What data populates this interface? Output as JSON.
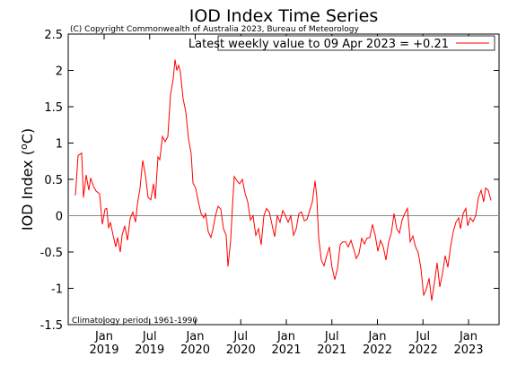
{
  "chart_data": {
    "type": "line",
    "title": "IOD Index Time Series",
    "subtitle": "(C) Copyright Commonwealth of Australia 2023, Bureau of Meteorology",
    "y_label": {
      "text": "IOD Index (",
      "sup": "o",
      "unit": "C)"
    },
    "annotation": "Climatology period: 1961-1990",
    "legend": "upper right",
    "zero_line": "#888888",
    "x": [
      2018.685,
      2018.714,
      2018.754,
      2018.773,
      2018.803,
      2018.833,
      2018.852,
      2018.882,
      2018.911,
      2018.951,
      2018.98,
      2019.01,
      2019.03,
      2019.049,
      2019.069,
      2019.099,
      2019.128,
      2019.148,
      2019.177,
      2019.197,
      2019.227,
      2019.256,
      2019.286,
      2019.315,
      2019.345,
      2019.365,
      2019.394,
      2019.424,
      2019.453,
      2019.483,
      2019.512,
      2019.542,
      2019.562,
      2019.591,
      2019.611,
      2019.64,
      2019.67,
      2019.7,
      2019.729,
      2019.759,
      2019.778,
      2019.798,
      2019.818,
      2019.837,
      2019.867,
      2019.897,
      2019.926,
      2019.956,
      2019.975,
      2020.005,
      2020.034,
      2020.064,
      2020.094,
      2020.113,
      2020.143,
      2020.172,
      2020.192,
      2020.222,
      2020.251,
      2020.281,
      2020.31,
      2020.34,
      2020.36,
      2020.389,
      2020.409,
      2020.429,
      2020.458,
      2020.488,
      2020.517,
      2020.547,
      2020.576,
      2020.606,
      2020.635,
      2020.665,
      2020.695,
      2020.724,
      2020.754,
      2020.783,
      2020.813,
      2020.842,
      2020.872,
      2020.901,
      2020.931,
      2020.961,
      2020.99,
      2021.02,
      2021.049,
      2021.079,
      2021.108,
      2021.138,
      2021.167,
      2021.197,
      2021.227,
      2021.256,
      2021.286,
      2021.315,
      2021.335,
      2021.355,
      2021.384,
      2021.414,
      2021.443,
      2021.473,
      2021.502,
      2021.532,
      2021.562,
      2021.591,
      2021.621,
      2021.65,
      2021.68,
      2021.709,
      2021.739,
      2021.768,
      2021.798,
      2021.828,
      2021.857,
      2021.887,
      2021.916,
      2021.946,
      2021.975,
      2022.005,
      2022.034,
      2022.064,
      2022.094,
      2022.123,
      2022.153,
      2022.182,
      2022.212,
      2022.241,
      2022.271,
      2022.3,
      2022.33,
      2022.36,
      2022.389,
      2022.419,
      2022.448,
      2022.478,
      2022.507,
      2022.537,
      2022.567,
      2022.596,
      2022.626,
      2022.655,
      2022.685,
      2022.714,
      2022.744,
      2022.773,
      2022.803,
      2022.833,
      2022.862,
      2022.892,
      2022.911,
      2022.941,
      2022.97,
      2022.99,
      2023.02,
      2023.049,
      2023.079,
      2023.108,
      2023.138,
      2023.167,
      2023.187,
      2023.217,
      2023.246
    ],
    "series": [
      {
        "name": "Latest weekly value to 09 Apr 2023 = +0.21",
        "color": "#ff0000",
        "values": [
          0.28,
          0.83,
          0.86,
          0.25,
          0.56,
          0.35,
          0.52,
          0.41,
          0.34,
          0.3,
          -0.12,
          0.09,
          0.1,
          -0.17,
          -0.09,
          -0.27,
          -0.43,
          -0.3,
          -0.5,
          -0.27,
          -0.14,
          -0.34,
          -0.04,
          0.05,
          -0.09,
          0.15,
          0.38,
          0.76,
          0.56,
          0.25,
          0.22,
          0.44,
          0.23,
          0.81,
          0.77,
          1.09,
          1.02,
          1.09,
          1.67,
          1.88,
          2.15,
          2.0,
          2.07,
          1.98,
          1.61,
          1.43,
          1.06,
          0.85,
          0.45,
          0.38,
          0.2,
          0.03,
          -0.03,
          0.03,
          -0.22,
          -0.3,
          -0.2,
          0.0,
          0.13,
          0.09,
          -0.18,
          -0.27,
          -0.7,
          -0.34,
          0.13,
          0.54,
          0.48,
          0.44,
          0.5,
          0.31,
          0.19,
          -0.06,
          0.0,
          -0.27,
          -0.18,
          -0.4,
          0.0,
          0.1,
          0.05,
          -0.12,
          -0.29,
          0.0,
          -0.09,
          0.07,
          0.0,
          -0.09,
          0.0,
          -0.27,
          -0.18,
          0.03,
          0.05,
          -0.07,
          -0.05,
          0.07,
          0.19,
          0.48,
          0.25,
          -0.3,
          -0.61,
          -0.69,
          -0.55,
          -0.43,
          -0.71,
          -0.88,
          -0.73,
          -0.4,
          -0.36,
          -0.36,
          -0.43,
          -0.34,
          -0.46,
          -0.59,
          -0.52,
          -0.31,
          -0.39,
          -0.31,
          -0.3,
          -0.12,
          -0.27,
          -0.49,
          -0.34,
          -0.43,
          -0.61,
          -0.36,
          -0.24,
          0.03,
          -0.18,
          -0.24,
          -0.06,
          0.03,
          0.1,
          -0.36,
          -0.28,
          -0.43,
          -0.51,
          -0.73,
          -1.1,
          -1.01,
          -0.86,
          -1.17,
          -0.92,
          -0.65,
          -0.98,
          -0.8,
          -0.55,
          -0.71,
          -0.43,
          -0.22,
          -0.09,
          -0.03,
          -0.18,
          0.03,
          0.1,
          -0.14,
          -0.03,
          -0.08,
          0.0,
          0.25,
          0.35,
          0.19,
          0.38,
          0.35,
          0.21
        ]
      }
    ],
    "xlim": [
      2018.606,
      2023.335
    ],
    "xticks": [
      {
        "value": 2019.0,
        "label": "Jan",
        "year": "2019"
      },
      {
        "value": 2019.5,
        "label": "Jul",
        "year": "2019"
      },
      {
        "value": 2020.0,
        "label": "Jan",
        "year": "2020"
      },
      {
        "value": 2020.5,
        "label": "Jul",
        "year": "2020"
      },
      {
        "value": 2021.0,
        "label": "Jan",
        "year": "2021"
      },
      {
        "value": 2021.5,
        "label": "Jul",
        "year": "2021"
      },
      {
        "value": 2022.0,
        "label": "Jan",
        "year": "2022"
      },
      {
        "value": 2022.5,
        "label": "Jul",
        "year": "2022"
      },
      {
        "value": 2023.0,
        "label": "Jan",
        "year": "2023"
      }
    ],
    "ylim": [
      -1.5,
      2.5
    ],
    "yticks": [
      -1.5,
      -1,
      -0.5,
      0,
      0.5,
      1,
      1.5,
      2,
      2.5
    ]
  }
}
